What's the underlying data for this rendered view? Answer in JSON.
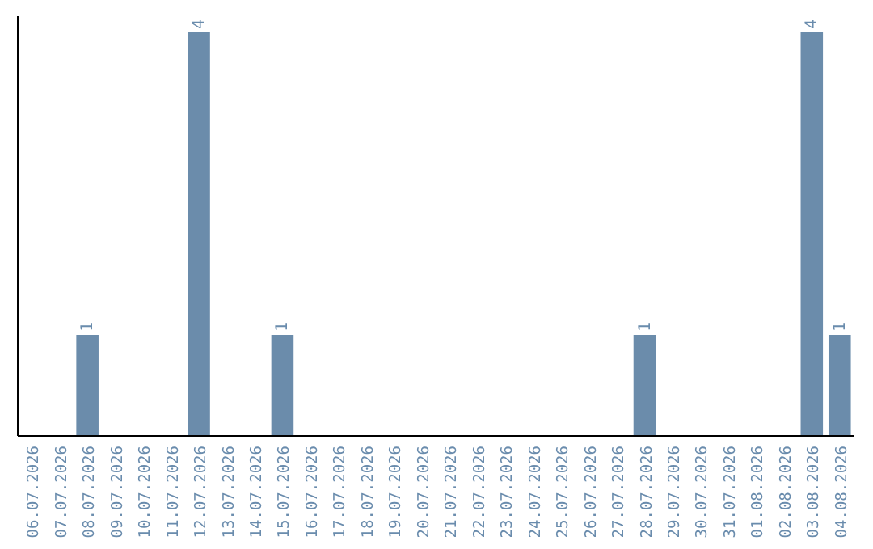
{
  "chart_data": {
    "type": "bar",
    "categories": [
      "06.07.2026",
      "07.07.2026",
      "08.07.2026",
      "09.07.2026",
      "10.07.2026",
      "11.07.2026",
      "12.07.2026",
      "13.07.2026",
      "14.07.2026",
      "15.07.2026",
      "16.07.2026",
      "17.07.2026",
      "18.07.2026",
      "19.07.2026",
      "20.07.2026",
      "21.07.2026",
      "22.07.2026",
      "23.07.2026",
      "24.07.2026",
      "25.07.2026",
      "26.07.2026",
      "27.07.2026",
      "28.07.2026",
      "29.07.2026",
      "30.07.2026",
      "31.07.2026",
      "01.08.2026",
      "02.08.2026",
      "03.08.2026",
      "04.08.2026"
    ],
    "values": [
      0,
      0,
      1,
      0,
      0,
      0,
      4,
      0,
      0,
      1,
      0,
      0,
      0,
      0,
      0,
      0,
      0,
      0,
      0,
      0,
      0,
      0,
      1,
      0,
      0,
      0,
      0,
      0,
      4,
      1
    ],
    "value_labels": [
      null,
      null,
      "1",
      null,
      null,
      null,
      "4",
      null,
      null,
      "1",
      null,
      null,
      null,
      null,
      null,
      null,
      null,
      null,
      null,
      null,
      null,
      null,
      "1",
      null,
      null,
      null,
      null,
      null,
      "4",
      "1"
    ],
    "color": "#6b8cab"
  }
}
